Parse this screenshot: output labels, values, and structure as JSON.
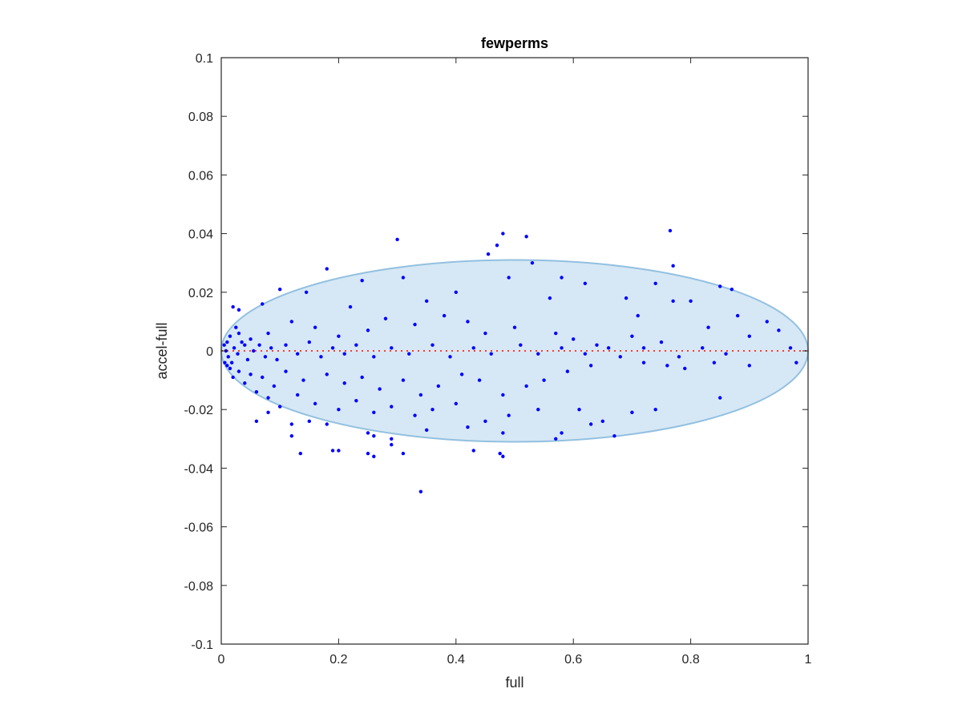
{
  "chart_data": {
    "type": "scatter",
    "title": "fewperms",
    "xlabel": "full",
    "ylabel": "accel-full",
    "xlim": [
      0,
      1
    ],
    "ylim": [
      -0.1,
      0.1
    ],
    "x_ticks": [
      0,
      0.2,
      0.4,
      0.6,
      0.8,
      1
    ],
    "x_tick_labels": [
      "0",
      "0.2",
      "0.4",
      "0.6",
      "0.8",
      "1"
    ],
    "y_ticks": [
      -0.1,
      -0.08,
      -0.06,
      -0.04,
      -0.02,
      0,
      0.02,
      0.04,
      0.06,
      0.08,
      0.1
    ],
    "y_tick_labels": [
      "-0.1",
      "-0.08",
      "-0.06",
      "-0.04",
      "-0.02",
      "0",
      "0.02",
      "0.04",
      "0.06",
      "0.08",
      "0.1"
    ],
    "grid": false,
    "colors": {
      "points": "#0000ff",
      "ellipse_fill": "#d6e8f5",
      "ellipse_stroke": "#92c0e0",
      "reference_line": "#ff3b30",
      "axes": "#262626"
    },
    "reference_line": {
      "y": 0,
      "style": "dotted"
    },
    "ellipse": {
      "center": [
        0.5,
        0.0
      ],
      "semi_x": 0.5,
      "semi_y": 0.031
    },
    "points": [
      [
        0.765,
        0.041
      ],
      [
        0.48,
        0.04
      ],
      [
        0.52,
        0.039
      ],
      [
        0.47,
        0.036
      ],
      [
        0.3,
        0.038
      ],
      [
        0.455,
        0.033
      ],
      [
        0.53,
        0.03
      ],
      [
        0.77,
        0.029
      ],
      [
        0.18,
        0.028
      ],
      [
        0.24,
        0.024
      ],
      [
        0.31,
        0.025
      ],
      [
        0.49,
        0.025
      ],
      [
        0.58,
        0.025
      ],
      [
        0.74,
        0.023
      ],
      [
        0.85,
        0.022
      ],
      [
        0.87,
        0.021
      ],
      [
        0.62,
        0.023
      ],
      [
        0.1,
        0.021
      ],
      [
        0.145,
        0.02
      ],
      [
        0.4,
        0.02
      ],
      [
        0.69,
        0.018
      ],
      [
        0.8,
        0.017
      ],
      [
        0.93,
        0.01
      ],
      [
        0.95,
        0.007
      ],
      [
        0.77,
        0.017
      ],
      [
        0.71,
        0.012
      ],
      [
        0.56,
        0.018
      ],
      [
        0.35,
        0.017
      ],
      [
        0.22,
        0.015
      ],
      [
        0.07,
        0.016
      ],
      [
        0.02,
        0.015
      ],
      [
        0.03,
        0.014
      ],
      [
        0.9,
        0.005
      ],
      [
        0.98,
        -0.004
      ],
      [
        0.88,
        0.012
      ],
      [
        0.83,
        0.008
      ],
      [
        0.7,
        0.005
      ],
      [
        0.75,
        0.003
      ],
      [
        0.64,
        0.002
      ],
      [
        0.6,
        0.004
      ],
      [
        0.57,
        0.006
      ],
      [
        0.5,
        0.008
      ],
      [
        0.45,
        0.006
      ],
      [
        0.42,
        0.01
      ],
      [
        0.38,
        0.012
      ],
      [
        0.33,
        0.009
      ],
      [
        0.28,
        0.011
      ],
      [
        0.25,
        0.007
      ],
      [
        0.2,
        0.005
      ],
      [
        0.16,
        0.008
      ],
      [
        0.12,
        0.01
      ],
      [
        0.08,
        0.006
      ],
      [
        0.05,
        0.004
      ],
      [
        0.04,
        0.002
      ],
      [
        0.03,
        0.006
      ],
      [
        0.025,
        0.008
      ],
      [
        0.015,
        0.005
      ],
      [
        0.01,
        0.003
      ],
      [
        0.005,
        0.002
      ],
      [
        0.008,
        0.0
      ],
      [
        0.012,
        -0.002
      ],
      [
        0.018,
        -0.004
      ],
      [
        0.022,
        0.001
      ],
      [
        0.028,
        -0.001
      ],
      [
        0.035,
        0.003
      ],
      [
        0.045,
        -0.003
      ],
      [
        0.055,
        0.0
      ],
      [
        0.065,
        0.002
      ],
      [
        0.075,
        -0.002
      ],
      [
        0.085,
        0.001
      ],
      [
        0.095,
        -0.003
      ],
      [
        0.11,
        0.002
      ],
      [
        0.13,
        -0.001
      ],
      [
        0.15,
        0.003
      ],
      [
        0.17,
        -0.002
      ],
      [
        0.19,
        0.001
      ],
      [
        0.21,
        -0.001
      ],
      [
        0.23,
        0.002
      ],
      [
        0.26,
        -0.002
      ],
      [
        0.29,
        0.001
      ],
      [
        0.32,
        -0.001
      ],
      [
        0.36,
        0.002
      ],
      [
        0.39,
        -0.002
      ],
      [
        0.43,
        0.001
      ],
      [
        0.46,
        -0.001
      ],
      [
        0.51,
        0.002
      ],
      [
        0.54,
        -0.001
      ],
      [
        0.58,
        0.001
      ],
      [
        0.62,
        -0.001
      ],
      [
        0.66,
        0.001
      ],
      [
        0.68,
        -0.002
      ],
      [
        0.72,
        0.001
      ],
      [
        0.78,
        -0.002
      ],
      [
        0.82,
        0.001
      ],
      [
        0.86,
        -0.001
      ],
      [
        0.97,
        0.001
      ],
      [
        0.72,
        -0.004
      ],
      [
        0.76,
        -0.005
      ],
      [
        0.79,
        -0.006
      ],
      [
        0.84,
        -0.004
      ],
      [
        0.9,
        -0.005
      ],
      [
        0.63,
        -0.005
      ],
      [
        0.59,
        -0.007
      ],
      [
        0.55,
        -0.01
      ],
      [
        0.52,
        -0.012
      ],
      [
        0.48,
        -0.015
      ],
      [
        0.44,
        -0.01
      ],
      [
        0.41,
        -0.008
      ],
      [
        0.37,
        -0.012
      ],
      [
        0.34,
        -0.015
      ],
      [
        0.31,
        -0.01
      ],
      [
        0.27,
        -0.013
      ],
      [
        0.24,
        -0.009
      ],
      [
        0.21,
        -0.011
      ],
      [
        0.18,
        -0.008
      ],
      [
        0.14,
        -0.01
      ],
      [
        0.11,
        -0.007
      ],
      [
        0.09,
        -0.012
      ],
      [
        0.07,
        -0.009
      ],
      [
        0.05,
        -0.008
      ],
      [
        0.04,
        -0.011
      ],
      [
        0.03,
        -0.007
      ],
      [
        0.02,
        -0.009
      ],
      [
        0.015,
        -0.006
      ],
      [
        0.01,
        -0.005
      ],
      [
        0.006,
        -0.004
      ],
      [
        0.16,
        -0.018
      ],
      [
        0.13,
        -0.015
      ],
      [
        0.1,
        -0.019
      ],
      [
        0.08,
        -0.016
      ],
      [
        0.06,
        -0.014
      ],
      [
        0.2,
        -0.02
      ],
      [
        0.23,
        -0.017
      ],
      [
        0.26,
        -0.021
      ],
      [
        0.29,
        -0.019
      ],
      [
        0.33,
        -0.022
      ],
      [
        0.36,
        -0.02
      ],
      [
        0.4,
        -0.018
      ],
      [
        0.45,
        -0.024
      ],
      [
        0.49,
        -0.022
      ],
      [
        0.54,
        -0.02
      ],
      [
        0.61,
        -0.02
      ],
      [
        0.65,
        -0.024
      ],
      [
        0.7,
        -0.021
      ],
      [
        0.74,
        -0.02
      ],
      [
        0.85,
        -0.016
      ],
      [
        0.12,
        -0.025
      ],
      [
        0.15,
        -0.024
      ],
      [
        0.18,
        -0.025
      ],
      [
        0.06,
        -0.024
      ],
      [
        0.08,
        -0.021
      ],
      [
        0.25,
        -0.028
      ],
      [
        0.29,
        -0.03
      ],
      [
        0.35,
        -0.027
      ],
      [
        0.42,
        -0.026
      ],
      [
        0.48,
        -0.028
      ],
      [
        0.58,
        -0.028
      ],
      [
        0.63,
        -0.025
      ],
      [
        0.67,
        -0.029
      ],
      [
        0.57,
        -0.03
      ],
      [
        0.26,
        -0.029
      ],
      [
        0.12,
        -0.029
      ],
      [
        0.135,
        -0.035
      ],
      [
        0.19,
        -0.034
      ],
      [
        0.2,
        -0.034
      ],
      [
        0.25,
        -0.035
      ],
      [
        0.26,
        -0.036
      ],
      [
        0.31,
        -0.035
      ],
      [
        0.29,
        -0.032
      ],
      [
        0.43,
        -0.034
      ],
      [
        0.48,
        -0.036
      ],
      [
        0.475,
        -0.035
      ],
      [
        0.34,
        -0.048
      ]
    ]
  }
}
